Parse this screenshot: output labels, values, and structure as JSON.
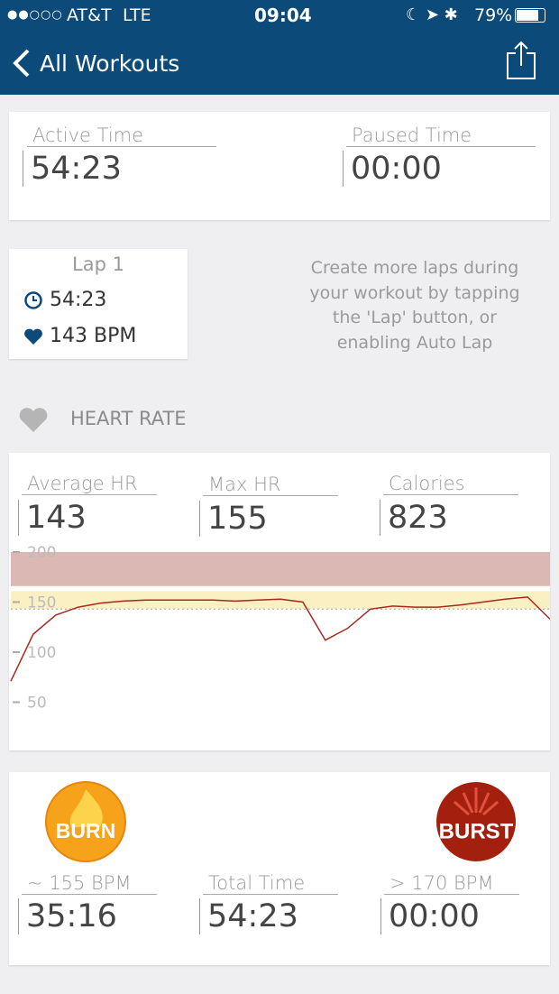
{
  "status_bar": {
    "carrier": "AT&T",
    "network": "LTE",
    "time": "09:04",
    "battery": "79%"
  },
  "nav": {
    "back": "All Workouts"
  },
  "times": [
    {
      "label": "Active Time",
      "value": "54:23"
    },
    {
      "label": "Paused Time",
      "value": "00:00"
    }
  ],
  "lap": {
    "title": "Lap 1",
    "time": "54:23",
    "heart_rate": "143 BPM"
  },
  "lap_hint": "Create more laps during your workout by tapping the 'Lap' button, or enabling Auto Lap",
  "section_title": "HEART RATE",
  "hr_stats": [
    {
      "label": "Average HR",
      "value": "143"
    },
    {
      "label": "Max HR",
      "value": "155"
    },
    {
      "label": "Calories",
      "value": "823"
    }
  ],
  "chart_data": {
    "type": "line",
    "color": "#a52a1f",
    "values": [
      71,
      118,
      137,
      145,
      149,
      151,
      152,
      152,
      152,
      152,
      151,
      152,
      153,
      150,
      112,
      124,
      143,
      146,
      145,
      145,
      147,
      150,
      153,
      155,
      133
    ],
    "ylim": [
      0,
      200
    ],
    "yticks": [
      50,
      100,
      150,
      200
    ],
    "bands": [
      {
        "from": 166,
        "to": 200,
        "color": "#dbb8b4"
      },
      {
        "from": 143,
        "to": 161,
        "color": "#fbf0c4"
      }
    ],
    "reference_line": 143
  },
  "zones": {
    "burn_badge": "BURN",
    "burst_badge": "BURST",
    "stats": [
      {
        "label": "~ 155 BPM",
        "value": "35:16"
      },
      {
        "label": "Total Time",
        "value": "54:23"
      },
      {
        "label": "> 170 BPM",
        "value": "00:00"
      }
    ]
  }
}
